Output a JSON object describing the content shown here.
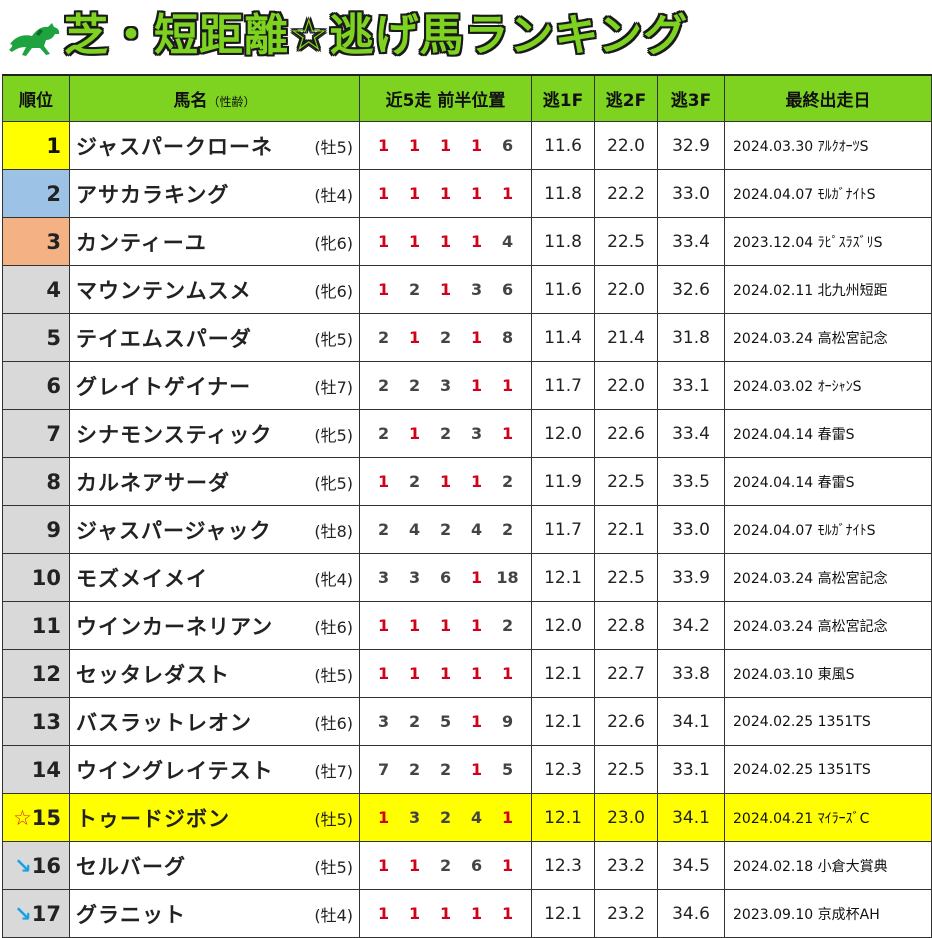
{
  "title": "芝・短距離☆逃げ馬ランキング",
  "colors": {
    "accent": "#7ed321",
    "gold": "#ffff00",
    "silver": "#9cc3e6",
    "bronze": "#f4b183",
    "first_position": "#d0021b"
  },
  "headers": {
    "rank": "順位",
    "name": "馬名",
    "name_sub": "（性齢）",
    "positions": "近5走 前半位置",
    "f1": "逃1F",
    "f2": "逃2F",
    "f3": "逃3F",
    "last_race": "最終出走日"
  },
  "rows": [
    {
      "rank": "1",
      "prefix": "",
      "name": "ジャスパークローネ",
      "sexage": "(牡5)",
      "pos": [
        "1",
        "1",
        "1",
        "1",
        "6"
      ],
      "f1": "11.6",
      "f2": "22.0",
      "f3": "32.9",
      "date": "2024.03.30",
      "race": "ｱﾙｸｵｰﾂS",
      "tier": "gold"
    },
    {
      "rank": "2",
      "prefix": "",
      "name": "アサカラキング",
      "sexage": "(牡4)",
      "pos": [
        "1",
        "1",
        "1",
        "1",
        "1"
      ],
      "f1": "11.8",
      "f2": "22.2",
      "f3": "33.0",
      "date": "2024.04.07",
      "race": "ﾓﾙｶﾞﾅｲﾄS",
      "tier": "silver"
    },
    {
      "rank": "3",
      "prefix": "",
      "name": "カンティーユ",
      "sexage": "(牝6)",
      "pos": [
        "1",
        "1",
        "1",
        "1",
        "4"
      ],
      "f1": "11.8",
      "f2": "22.5",
      "f3": "33.4",
      "date": "2023.12.04",
      "race": "ﾗﾋﾟｽﾗｽﾞﾘS",
      "tier": "bronze"
    },
    {
      "rank": "4",
      "prefix": "",
      "name": "マウンテンムスメ",
      "sexage": "(牝6)",
      "pos": [
        "1",
        "2",
        "1",
        "3",
        "6"
      ],
      "f1": "11.6",
      "f2": "22.0",
      "f3": "32.6",
      "date": "2024.02.11",
      "race": "北九州短距",
      "tier": ""
    },
    {
      "rank": "5",
      "prefix": "",
      "name": "テイエムスパーダ",
      "sexage": "(牝5)",
      "pos": [
        "2",
        "1",
        "2",
        "1",
        "8"
      ],
      "f1": "11.4",
      "f2": "21.4",
      "f3": "31.8",
      "date": "2024.03.24",
      "race": "高松宮記念",
      "tier": ""
    },
    {
      "rank": "6",
      "prefix": "",
      "name": "グレイトゲイナー",
      "sexage": "(牡7)",
      "pos": [
        "2",
        "2",
        "3",
        "1",
        "1"
      ],
      "f1": "11.7",
      "f2": "22.0",
      "f3": "33.1",
      "date": "2024.03.02",
      "race": "ｵｰｼｬﾝS",
      "tier": ""
    },
    {
      "rank": "7",
      "prefix": "",
      "name": "シナモンスティック",
      "sexage": "(牝5)",
      "pos": [
        "2",
        "1",
        "2",
        "3",
        "1"
      ],
      "f1": "12.0",
      "f2": "22.6",
      "f3": "33.4",
      "date": "2024.04.14",
      "race": "春雷S",
      "tier": ""
    },
    {
      "rank": "8",
      "prefix": "",
      "name": "カルネアサーダ",
      "sexage": "(牝5)",
      "pos": [
        "1",
        "2",
        "1",
        "1",
        "2"
      ],
      "f1": "11.9",
      "f2": "22.5",
      "f3": "33.5",
      "date": "2024.04.14",
      "race": "春雷S",
      "tier": ""
    },
    {
      "rank": "9",
      "prefix": "",
      "name": "ジャスパージャック",
      "sexage": "(牡8)",
      "pos": [
        "2",
        "4",
        "2",
        "4",
        "2"
      ],
      "f1": "11.7",
      "f2": "22.1",
      "f3": "33.0",
      "date": "2024.04.07",
      "race": "ﾓﾙｶﾞﾅｲﾄS",
      "tier": ""
    },
    {
      "rank": "10",
      "prefix": "",
      "name": "モズメイメイ",
      "sexage": "(牝4)",
      "pos": [
        "3",
        "3",
        "6",
        "1",
        "18"
      ],
      "f1": "12.1",
      "f2": "22.5",
      "f3": "33.9",
      "date": "2024.03.24",
      "race": "高松宮記念",
      "tier": ""
    },
    {
      "rank": "11",
      "prefix": "",
      "name": "ウインカーネリアン",
      "sexage": "(牡6)",
      "pos": [
        "1",
        "1",
        "1",
        "1",
        "2"
      ],
      "f1": "12.0",
      "f2": "22.8",
      "f3": "34.2",
      "date": "2024.03.24",
      "race": "高松宮記念",
      "tier": ""
    },
    {
      "rank": "12",
      "prefix": "",
      "name": "セッタレダスト",
      "sexage": "(牡5)",
      "pos": [
        "1",
        "1",
        "1",
        "1",
        "1"
      ],
      "f1": "12.1",
      "f2": "22.7",
      "f3": "33.8",
      "date": "2024.03.10",
      "race": "東風S",
      "tier": ""
    },
    {
      "rank": "13",
      "prefix": "",
      "name": "バスラットレオン",
      "sexage": "(牡6)",
      "pos": [
        "3",
        "2",
        "5",
        "1",
        "9"
      ],
      "f1": "12.1",
      "f2": "22.6",
      "f3": "34.1",
      "date": "2024.02.25",
      "race": "1351TS",
      "tier": ""
    },
    {
      "rank": "14",
      "prefix": "",
      "name": "ウイングレイテスト",
      "sexage": "(牡7)",
      "pos": [
        "7",
        "2",
        "2",
        "1",
        "5"
      ],
      "f1": "12.3",
      "f2": "22.5",
      "f3": "33.1",
      "date": "2024.02.25",
      "race": "1351TS",
      "tier": ""
    },
    {
      "rank": "15",
      "prefix": "☆",
      "name": "トゥードジボン",
      "sexage": "(牡5)",
      "pos": [
        "1",
        "3",
        "2",
        "4",
        "1"
      ],
      "f1": "12.1",
      "f2": "23.0",
      "f3": "34.1",
      "date": "2024.04.21",
      "race": "ﾏｲﾗｰｽﾞC",
      "tier": "highlight"
    },
    {
      "rank": "16",
      "prefix": "↘",
      "name": "セルバーグ",
      "sexage": "(牡5)",
      "pos": [
        "1",
        "1",
        "2",
        "6",
        "1"
      ],
      "f1": "12.3",
      "f2": "23.2",
      "f3": "34.5",
      "date": "2024.02.18",
      "race": "小倉大賞典",
      "tier": ""
    },
    {
      "rank": "17",
      "prefix": "↘",
      "name": "グラニット",
      "sexage": "(牡4)",
      "pos": [
        "1",
        "1",
        "1",
        "1",
        "1"
      ],
      "f1": "12.1",
      "f2": "23.2",
      "f3": "34.6",
      "date": "2023.09.10",
      "race": "京成杯AH",
      "tier": ""
    }
  ]
}
